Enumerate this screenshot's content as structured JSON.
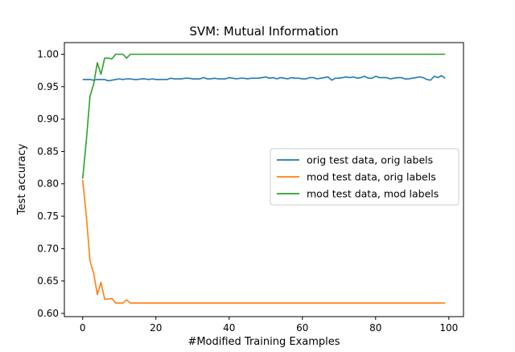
{
  "chart_data": {
    "type": "line",
    "title": "SVM: Mutual Information",
    "xlabel": "#Modified Training Examples",
    "ylabel": "Test accuracy",
    "xlim": [
      -5,
      104
    ],
    "ylim": [
      0.595,
      1.018
    ],
    "xticks": [
      0,
      20,
      40,
      60,
      80,
      100
    ],
    "yticks": [
      0.6,
      0.65,
      0.7,
      0.75,
      0.8,
      0.85,
      0.9,
      0.95,
      1.0
    ],
    "grid": false,
    "legend_position": "center-right",
    "x": [
      0,
      1,
      2,
      3,
      4,
      5,
      6,
      7,
      8,
      9,
      10,
      11,
      12,
      13,
      14,
      15,
      16,
      17,
      18,
      19,
      20,
      21,
      22,
      23,
      24,
      25,
      26,
      27,
      28,
      29,
      30,
      31,
      32,
      33,
      34,
      35,
      36,
      37,
      38,
      39,
      40,
      41,
      42,
      43,
      44,
      45,
      46,
      47,
      48,
      49,
      50,
      51,
      52,
      53,
      54,
      55,
      56,
      57,
      58,
      59,
      60,
      61,
      62,
      63,
      64,
      65,
      66,
      67,
      68,
      69,
      70,
      71,
      72,
      73,
      74,
      75,
      76,
      77,
      78,
      79,
      80,
      81,
      82,
      83,
      84,
      85,
      86,
      87,
      88,
      89,
      90,
      91,
      92,
      93,
      94,
      95,
      96,
      97,
      98,
      99
    ],
    "series": [
      {
        "name": "orig test data, orig labels",
        "color": "#1f77b4",
        "values": [
          0.961,
          0.961,
          0.961,
          0.96,
          0.961,
          0.961,
          0.961,
          0.959,
          0.96,
          0.961,
          0.962,
          0.961,
          0.962,
          0.962,
          0.961,
          0.961,
          0.962,
          0.962,
          0.961,
          0.962,
          0.961,
          0.961,
          0.961,
          0.961,
          0.963,
          0.962,
          0.962,
          0.962,
          0.963,
          0.963,
          0.962,
          0.962,
          0.962,
          0.964,
          0.962,
          0.962,
          0.963,
          0.962,
          0.962,
          0.962,
          0.964,
          0.963,
          0.962,
          0.963,
          0.963,
          0.962,
          0.963,
          0.963,
          0.963,
          0.964,
          0.965,
          0.963,
          0.964,
          0.962,
          0.964,
          0.963,
          0.962,
          0.964,
          0.963,
          0.963,
          0.962,
          0.962,
          0.964,
          0.964,
          0.962,
          0.963,
          0.964,
          0.965,
          0.96,
          0.963,
          0.963,
          0.964,
          0.965,
          0.964,
          0.965,
          0.963,
          0.964,
          0.966,
          0.963,
          0.963,
          0.966,
          0.964,
          0.964,
          0.964,
          0.962,
          0.963,
          0.964,
          0.964,
          0.962,
          0.962,
          0.963,
          0.964,
          0.965,
          0.964,
          0.961,
          0.96,
          0.966,
          0.964,
          0.967,
          0.963
        ]
      },
      {
        "name": "mod test data, orig labels",
        "color": "#ff7f0e",
        "values": [
          0.806,
          0.75,
          0.681,
          0.662,
          0.629,
          0.648,
          0.622,
          0.622,
          0.623,
          0.616,
          0.616,
          0.616,
          0.621,
          0.616,
          0.616,
          0.616,
          0.616,
          0.616,
          0.616,
          0.616,
          0.616,
          0.616,
          0.616,
          0.616,
          0.616,
          0.616,
          0.616,
          0.616,
          0.616,
          0.616,
          0.616,
          0.616,
          0.616,
          0.616,
          0.616,
          0.616,
          0.616,
          0.616,
          0.616,
          0.616,
          0.616,
          0.616,
          0.616,
          0.616,
          0.616,
          0.616,
          0.616,
          0.616,
          0.616,
          0.616,
          0.616,
          0.616,
          0.616,
          0.616,
          0.616,
          0.616,
          0.616,
          0.616,
          0.616,
          0.616,
          0.616,
          0.616,
          0.616,
          0.616,
          0.616,
          0.616,
          0.616,
          0.616,
          0.616,
          0.616,
          0.616,
          0.616,
          0.616,
          0.616,
          0.616,
          0.616,
          0.616,
          0.616,
          0.616,
          0.616,
          0.616,
          0.616,
          0.616,
          0.616,
          0.616,
          0.616,
          0.616,
          0.616,
          0.616,
          0.616,
          0.616,
          0.616,
          0.616,
          0.616,
          0.616,
          0.616,
          0.616,
          0.616,
          0.616,
          0.616
        ]
      },
      {
        "name": "mod test data, mod labels",
        "color": "#2ca02c",
        "values": [
          0.808,
          0.867,
          0.935,
          0.954,
          0.987,
          0.969,
          0.994,
          0.994,
          0.993,
          1.0,
          1.0,
          1.0,
          0.994,
          1.0,
          1.0,
          1.0,
          1.0,
          1.0,
          1.0,
          1.0,
          1.0,
          1.0,
          1.0,
          1.0,
          1.0,
          1.0,
          1.0,
          1.0,
          1.0,
          1.0,
          1.0,
          1.0,
          1.0,
          1.0,
          1.0,
          1.0,
          1.0,
          1.0,
          1.0,
          1.0,
          1.0,
          1.0,
          1.0,
          1.0,
          1.0,
          1.0,
          1.0,
          1.0,
          1.0,
          1.0,
          1.0,
          1.0,
          1.0,
          1.0,
          1.0,
          1.0,
          1.0,
          1.0,
          1.0,
          1.0,
          1.0,
          1.0,
          1.0,
          1.0,
          1.0,
          1.0,
          1.0,
          1.0,
          1.0,
          1.0,
          1.0,
          1.0,
          1.0,
          1.0,
          1.0,
          1.0,
          1.0,
          1.0,
          1.0,
          1.0,
          1.0,
          1.0,
          1.0,
          1.0,
          1.0,
          1.0,
          1.0,
          1.0,
          1.0,
          1.0,
          1.0,
          1.0,
          1.0,
          1.0,
          1.0,
          1.0,
          1.0,
          1.0,
          1.0,
          1.0
        ]
      }
    ]
  }
}
